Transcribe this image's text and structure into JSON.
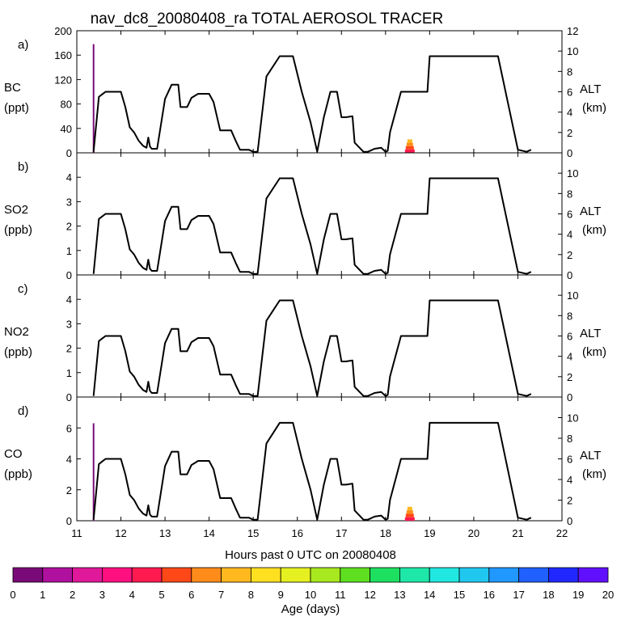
{
  "chart_data": {
    "type": "line",
    "title": "nav_dc8_20080408_ra TOTAL AEROSOL TRACER",
    "xlabel": "Hours past 0 UTC on 20080408",
    "xlim": [
      11,
      22
    ],
    "x_ticks": [
      "11",
      "12",
      "13",
      "14",
      "15",
      "16",
      "17",
      "18",
      "19",
      "20",
      "21",
      "22"
    ],
    "altitude_series": {
      "name": "ALT (km)",
      "x": [
        11.38,
        11.5,
        11.65,
        12.0,
        12.1,
        12.2,
        12.3,
        12.4,
        12.5,
        12.58,
        12.62,
        12.66,
        12.7,
        12.82,
        13.0,
        13.15,
        13.3,
        13.35,
        13.5,
        13.6,
        13.75,
        14.0,
        14.1,
        14.25,
        14.3,
        14.5,
        14.6,
        14.7,
        14.9,
        15.0,
        15.1,
        15.3,
        15.6,
        15.9,
        16.1,
        16.3,
        16.45,
        16.6,
        16.75,
        16.9,
        17.0,
        17.1,
        17.25,
        17.3,
        17.5,
        17.6,
        17.75,
        17.9,
        18.0,
        18.05,
        18.1,
        18.35,
        18.95,
        19.0,
        20.55,
        21.0,
        21.2,
        21.3
      ],
      "y": [
        0.1,
        5.5,
        6.0,
        6.0,
        4.5,
        2.5,
        2.0,
        1.2,
        0.7,
        0.5,
        1.5,
        0.6,
        0.4,
        0.4,
        5.3,
        6.7,
        6.7,
        4.5,
        4.5,
        5.4,
        5.8,
        5.8,
        5.0,
        2.2,
        2.2,
        2.2,
        1.2,
        0.3,
        0.3,
        0.1,
        0.1,
        7.5,
        9.5,
        9.5,
        6.0,
        3.0,
        0.1,
        3.5,
        6.0,
        6.0,
        3.5,
        3.5,
        3.6,
        1.0,
        0.1,
        0.1,
        0.4,
        0.5,
        0.1,
        0.2,
        2.0,
        6.0,
        6.0,
        9.5,
        9.5,
        0.3,
        0.1,
        0.3
      ]
    },
    "panels": [
      {
        "label": "a)",
        "species": "BC",
        "unit": "(ppt)",
        "ylim": [
          0,
          200
        ],
        "y_ticks": [
          "0",
          "40",
          "80",
          "120",
          "160",
          "200"
        ],
        "alt_ticks": [
          "0",
          "2",
          "4",
          "6",
          "8",
          "10",
          "12"
        ],
        "alt_scale": 12
      },
      {
        "label": "b)",
        "species": "SO2",
        "unit": "(ppb)",
        "ylim": [
          0,
          5
        ],
        "y_ticks": [
          "0",
          "1",
          "2",
          "3",
          "4"
        ],
        "alt_ticks": [
          "0",
          "2",
          "4",
          "6",
          "8",
          "10"
        ],
        "alt_scale": 12
      },
      {
        "label": "c)",
        "species": "NO2",
        "unit": "(ppb)",
        "ylim": [
          0,
          5
        ],
        "y_ticks": [
          "0",
          "1",
          "2",
          "3",
          "4"
        ],
        "alt_ticks": [
          "0",
          "2",
          "4",
          "6",
          "8",
          "10"
        ],
        "alt_scale": 12
      },
      {
        "label": "d)",
        "species": "CO",
        "unit": "(ppb)",
        "ylim": [
          0,
          8
        ],
        "y_ticks": [
          "0",
          "2",
          "4",
          "6"
        ],
        "alt_ticks": [
          "0",
          "2",
          "4",
          "6",
          "8",
          "10"
        ],
        "alt_scale": 12
      }
    ],
    "alt_label": "ALT",
    "alt_unit": "(km)",
    "colorbar": {
      "label": "Age (days)",
      "ticks": [
        "0",
        "1",
        "2",
        "3",
        "4",
        "5",
        "6",
        "7",
        "8",
        "9",
        "10",
        "11",
        "12",
        "13",
        "14",
        "15",
        "16",
        "17",
        "18",
        "19",
        "20"
      ],
      "colors": [
        "#7a0a78",
        "#b0109e",
        "#e0189a",
        "#ff1080",
        "#ff1a50",
        "#ff4818",
        "#ff8c1a",
        "#ffb81e",
        "#ffe020",
        "#e6f020",
        "#a8e81e",
        "#5ee020",
        "#1ee060",
        "#1ee8a8",
        "#20e8e0",
        "#20c8f0",
        "#2098ff",
        "#2060ff",
        "#2028ff",
        "#6010ff"
      ]
    },
    "tracer_events": [
      {
        "panel": 0,
        "x": 11.38,
        "value": 178,
        "age": 0
      },
      {
        "panel": 0,
        "x": 18.55,
        "value": 22,
        "age_stack": [
          4,
          5,
          6,
          7
        ]
      },
      {
        "panel": 3,
        "x": 11.38,
        "value": 6.3,
        "age": 0
      },
      {
        "panel": 3,
        "x": 18.55,
        "value": 0.9,
        "age_stack": [
          4,
          5,
          6,
          7
        ]
      }
    ]
  }
}
